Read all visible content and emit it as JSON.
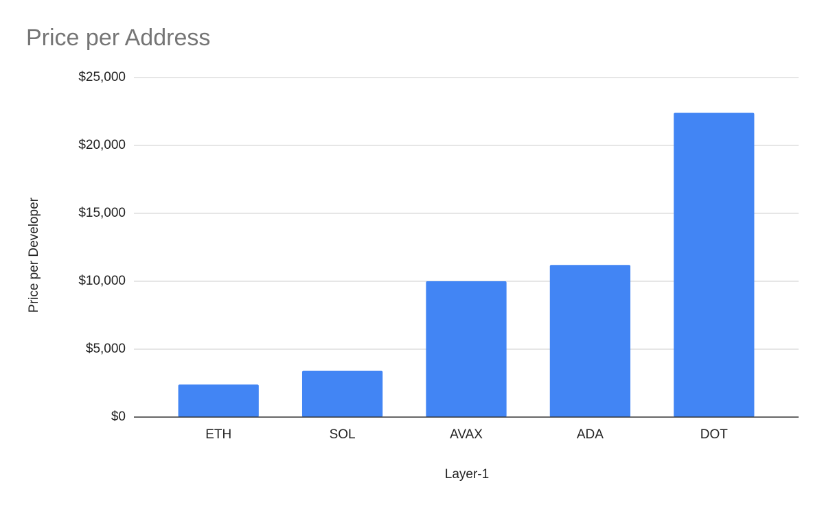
{
  "chart_data": {
    "type": "bar",
    "title": "Price per Address",
    "x_label": "Layer-1",
    "y_label": "Price per Developer",
    "categories": [
      "ETH",
      "SOL",
      "AVAX",
      "ADA",
      "DOT"
    ],
    "values": [
      2400,
      3400,
      10000,
      11200,
      22400
    ],
    "color": "#4285f4",
    "ylim": [
      0,
      25000
    ],
    "yticks": [
      {
        "value": 0,
        "label": "$0"
      },
      {
        "value": 5000,
        "label": "$5,000"
      },
      {
        "value": 10000,
        "label": "$10,000"
      },
      {
        "value": 15000,
        "label": "$15,000"
      },
      {
        "value": 20000,
        "label": "$20,000"
      },
      {
        "value": 25000,
        "label": "$25,000"
      }
    ],
    "grid": true
  }
}
